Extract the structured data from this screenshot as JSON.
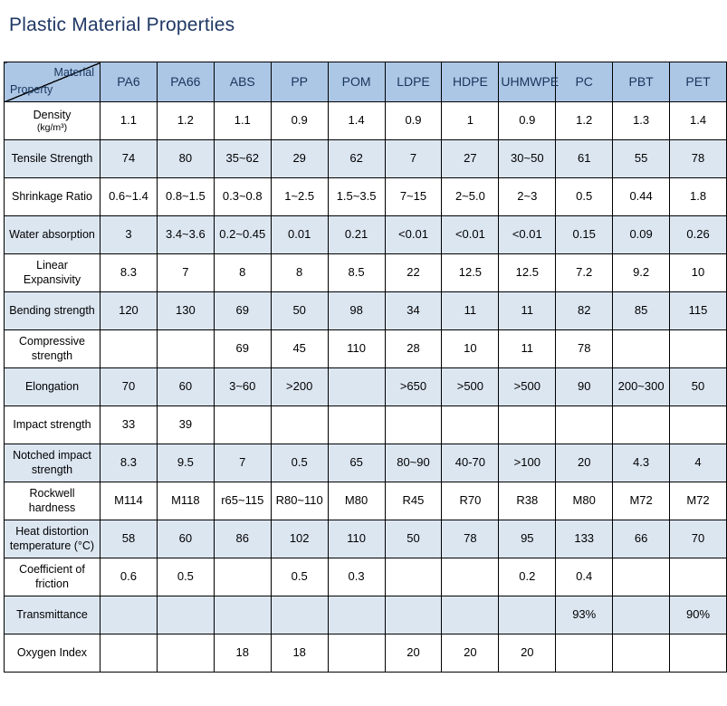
{
  "title": "Plastic Material Properties",
  "table": {
    "corner": {
      "top": "Material",
      "bottom": "Property"
    },
    "materials": [
      "PA6",
      "PA66",
      "ABS",
      "PP",
      "POM",
      "LDPE",
      "HDPE",
      "UHMWPE",
      "PC",
      "PBT",
      "PET"
    ],
    "rows": [
      {
        "property": "Density",
        "sub": "(kg/m³)",
        "values": [
          "1.1",
          "1.2",
          "1.1",
          "0.9",
          "1.4",
          "0.9",
          "1",
          "0.9",
          "1.2",
          "1.3",
          "1.4"
        ]
      },
      {
        "property": "Tensile Strength",
        "sub": "",
        "values": [
          "74",
          "80",
          "35~62",
          "29",
          "62",
          "7",
          "27",
          "30~50",
          "61",
          "55",
          "78"
        ]
      },
      {
        "property": "Shrinkage Ratio",
        "sub": "",
        "values": [
          "0.6~1.4",
          "0.8~1.5",
          "0.3~0.8",
          "1~2.5",
          "1.5~3.5",
          "7~15",
          "2~5.0",
          "2~3",
          "0.5",
          "0.44",
          "1.8"
        ]
      },
      {
        "property": "Water absorption",
        "sub": "",
        "values": [
          "3",
          "3.4~3.6",
          "0.2~0.45",
          "0.01",
          "0.21",
          "<0.01",
          "<0.01",
          "<0.01",
          "0.15",
          "0.09",
          "0.26"
        ]
      },
      {
        "property": "Linear Expansivity",
        "sub": "",
        "values": [
          "8.3",
          "7",
          "8",
          "8",
          "8.5",
          "22",
          "12.5",
          "12.5",
          "7.2",
          "9.2",
          "10"
        ]
      },
      {
        "property": "Bending strength",
        "sub": "",
        "values": [
          "120",
          "130",
          "69",
          "50",
          "98",
          "34",
          "11",
          "11",
          "82",
          "85",
          "115"
        ]
      },
      {
        "property": "Compressive strength",
        "sub": "",
        "values": [
          "",
          "",
          "69",
          "45",
          "110",
          "28",
          "10",
          "11",
          "78",
          "",
          ""
        ]
      },
      {
        "property": "Elongation",
        "sub": "",
        "values": [
          "70",
          "60",
          "3~60",
          ">200",
          "",
          ">650",
          ">500",
          ">500",
          "90",
          "200~300",
          "50"
        ]
      },
      {
        "property": "Impact strength",
        "sub": "",
        "values": [
          "33",
          "39",
          "",
          "",
          "",
          "",
          "",
          "",
          "",
          "",
          ""
        ]
      },
      {
        "property": "Notched impact strength",
        "sub": "",
        "values": [
          "8.3",
          "9.5",
          "7",
          "0.5",
          "65",
          "80~90",
          "40-70",
          ">100",
          "20",
          "4.3",
          "4"
        ]
      },
      {
        "property": "Rockwell hardness",
        "sub": "",
        "values": [
          "M114",
          "M118",
          "r65~115",
          "R80~110",
          "M80",
          "R45",
          "R70",
          "R38",
          "M80",
          "M72",
          "M72"
        ]
      },
      {
        "property": "Heat distortion temperature (°C)",
        "sub": "",
        "values": [
          "58",
          "60",
          "86",
          "102",
          "110",
          "50",
          "78",
          "95",
          "133",
          "66",
          "70"
        ]
      },
      {
        "property": "Coefficient of friction",
        "sub": "",
        "values": [
          "0.6",
          "0.5",
          "",
          "0.5",
          "0.3",
          "",
          "",
          "0.2",
          "0.4",
          "",
          ""
        ]
      },
      {
        "property": "Transmittance",
        "sub": "",
        "values": [
          "",
          "",
          "",
          "",
          "",
          "",
          "",
          "",
          "93%",
          "",
          "90%"
        ]
      },
      {
        "property": "Oxygen Index",
        "sub": "",
        "values": [
          "",
          "",
          "18",
          "18",
          "",
          "20",
          "20",
          "20",
          "",
          "",
          ""
        ]
      }
    ]
  },
  "colors": {
    "title": "#1F3864",
    "header_bg": "#ACC6E5",
    "alt_row_bg": "#DCE6F1",
    "border": "#000000"
  }
}
